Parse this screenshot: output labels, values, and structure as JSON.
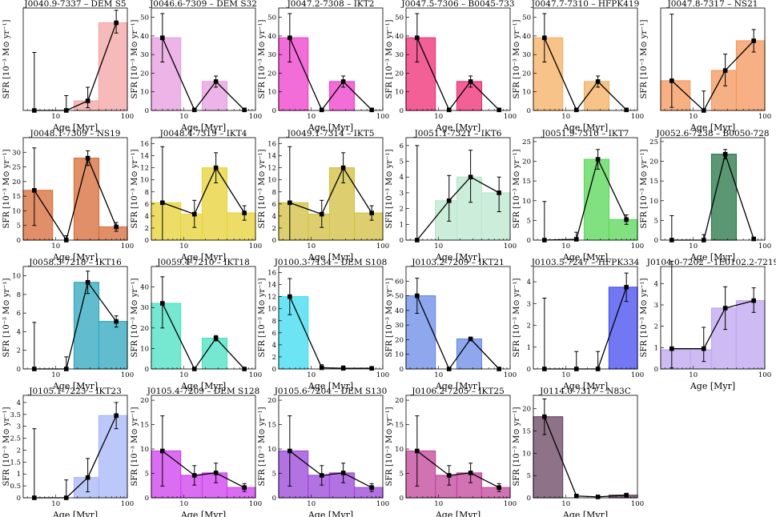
{
  "figure": {
    "xlabel": "Age [Myr]",
    "ylabel": "SFR [10⁻³ M⊙ yr⁻¹]",
    "bin_edges": [
      3.5,
      9,
      18,
      40,
      100
    ],
    "point_ages": [
      5,
      14,
      28,
      70
    ]
  },
  "chart_data": [
    {
      "type": "bar",
      "title": "J0040.9-7337 – DEM S5",
      "color": "#f4a6a6",
      "ylim": [
        0,
        4.5
      ],
      "yticks": [],
      "bars": [
        0,
        0,
        0.42,
        3.85
      ],
      "points": [
        0,
        0,
        0.42,
        3.85
      ],
      "err_lo": [
        0,
        0,
        0.3,
        0.45
      ],
      "err_hi": [
        2.55,
        0.65,
        0.6,
        0.55
      ]
    },
    {
      "type": "bar",
      "title": "J0046.6-7309 – DEM S32",
      "color": "#e8a0e0",
      "ylim": [
        0,
        55
      ],
      "yticks": [
        0,
        10,
        20,
        30,
        40,
        50
      ],
      "bars": [
        39,
        0,
        15.5,
        0
      ],
      "points": [
        39,
        0.3,
        15.5,
        0.3
      ],
      "err_lo": [
        13,
        0,
        3,
        0
      ],
      "err_hi": [
        13,
        0,
        3,
        0
      ]
    },
    {
      "type": "bar",
      "title": "J0047.2-7308 – IKT2",
      "color": "#ee44cc",
      "ylim": [
        0,
        55
      ],
      "yticks": [
        0,
        10,
        20,
        30,
        40,
        50
      ],
      "bars": [
        39,
        0,
        15.5,
        0
      ],
      "points": [
        39,
        0.3,
        15.5,
        0.3
      ],
      "err_lo": [
        13,
        0,
        3,
        0
      ],
      "err_hi": [
        13,
        0,
        3,
        0
      ]
    },
    {
      "type": "bar",
      "title": "J0047.5-7306 – B0045-733",
      "color": "#ee3377",
      "ylim": [
        0,
        55
      ],
      "yticks": [
        0,
        10,
        20,
        30,
        40,
        50
      ],
      "bars": [
        39,
        0,
        15.5,
        0
      ],
      "points": [
        39,
        0.3,
        15.5,
        0.3
      ],
      "err_lo": [
        13,
        0,
        3,
        0
      ],
      "err_hi": [
        13,
        0,
        3,
        0
      ]
    },
    {
      "type": "bar",
      "title": "J0047.7-7310 – HFPK419",
      "color": "#f5b266",
      "ylim": [
        0,
        55
      ],
      "yticks": [
        0,
        10,
        20,
        30,
        40,
        50
      ],
      "bars": [
        39,
        0,
        15.5,
        0
      ],
      "points": [
        39,
        0.3,
        15.5,
        0.3
      ],
      "err_lo": [
        13,
        0,
        3,
        0
      ],
      "err_hi": [
        13,
        0,
        3,
        0
      ]
    },
    {
      "type": "bar",
      "title": "J0047.8-7317 – NS21",
      "color": "#f39a62",
      "ylim": [
        0,
        10
      ],
      "yticks": [],
      "bars": [
        2.9,
        0,
        3.9,
        6.8
      ],
      "points": [
        2.9,
        0,
        3.9,
        6.8
      ],
      "err_lo": [
        2.6,
        0,
        1.5,
        1.1
      ],
      "err_hi": [
        6.5,
        1.9,
        1.6,
        1.1
      ]
    },
    {
      "type": "bar",
      "title": "J0048.1-7309 – NS19",
      "color": "#d9703e",
      "ylim": [
        0,
        35
      ],
      "yticks": [
        0,
        5,
        10,
        15,
        20,
        25,
        30
      ],
      "bars": [
        17,
        0,
        28,
        4.5
      ],
      "points": [
        17,
        0,
        28,
        4.5
      ],
      "err_lo": [
        12,
        0,
        2.5,
        1.5
      ],
      "err_hi": [
        14.5,
        1.5,
        2.5,
        1.5
      ]
    },
    {
      "type": "bar",
      "title": "J0048.4-7319 – IKT4",
      "color": "#e8d43c",
      "ylim": [
        0,
        17
      ],
      "yticks": [
        0,
        2,
        4,
        6,
        8,
        10,
        12,
        14,
        16
      ],
      "bars": [
        6.2,
        4.3,
        12,
        4.5
      ],
      "points": [
        6.2,
        4.3,
        12,
        4.5
      ],
      "err_lo": [
        6.2,
        2.2,
        2.5,
        1.2
      ],
      "err_hi": [
        9.3,
        2.3,
        2.5,
        1.2
      ]
    },
    {
      "type": "bar",
      "title": "J0049.1-7314 – IKT5",
      "color": "#d4c247",
      "ylim": [
        0,
        17
      ],
      "yticks": [
        0,
        2,
        4,
        6,
        8,
        10,
        12,
        14,
        16
      ],
      "bars": [
        6.2,
        4.3,
        12,
        4.5
      ],
      "points": [
        6.2,
        4.3,
        12,
        4.5
      ],
      "err_lo": [
        6.2,
        2.2,
        2.5,
        1.2
      ],
      "err_hi": [
        9.3,
        2.3,
        2.5,
        1.2
      ]
    },
    {
      "type": "bar",
      "title": "J0051.1-7321 – IKT6",
      "color": "#bde8cf",
      "ylim": [
        0,
        6.5
      ],
      "yticks": [
        0,
        1,
        2,
        3,
        4,
        5,
        6
      ],
      "bars": [
        0,
        2.5,
        4,
        3
      ],
      "points": [
        0,
        2.5,
        4,
        3
      ],
      "err_lo": [
        0,
        1.3,
        1.6,
        1.2
      ],
      "err_hi": [
        6,
        1.6,
        1.7,
        1
      ],
      "show_err0": true
    },
    {
      "type": "bar",
      "title": "J0051.9-7310 – IKT7",
      "color": "#5ed95e",
      "ylim": [
        0,
        26
      ],
      "yticks": [
        0,
        5,
        10,
        15,
        20,
        25
      ],
      "bars": [
        0,
        0,
        20.5,
        5.2
      ],
      "points": [
        0,
        0.2,
        20.5,
        5.2
      ],
      "err_lo": [
        0,
        0,
        2.5,
        1.2
      ],
      "err_hi": [
        9.8,
        1.8,
        2.5,
        1.2
      ]
    },
    {
      "type": "bar",
      "title": "J0052.6-7238 – B0050-728",
      "color": "#2e7a4d",
      "ylim": [
        0,
        26
      ],
      "yticks": [
        0,
        5,
        10,
        15,
        20,
        25
      ],
      "bars": [
        0,
        0,
        21.8,
        0
      ],
      "points": [
        0,
        0,
        21.8,
        0.3
      ],
      "err_lo": [
        0,
        0,
        1.2,
        0
      ],
      "err_hi": [
        6.2,
        1.4,
        1.2,
        0
      ]
    },
    {
      "type": "bar",
      "title": "J0058.3-7218 – IKT16",
      "color": "#35a9c0",
      "ylim": [
        0,
        11
      ],
      "yticks": [
        0,
        2,
        4,
        6,
        8,
        10
      ],
      "bars": [
        0,
        0,
        9.3,
        5.1
      ],
      "points": [
        0,
        0,
        9.3,
        5.1
      ],
      "err_lo": [
        0,
        0,
        1.2,
        0.6
      ],
      "err_hi": [
        5,
        1.3,
        1.2,
        0.6
      ]
    },
    {
      "type": "bar",
      "title": "J0059.4-7210 – IKT18",
      "color": "#4fe2c4",
      "ylim": [
        0,
        50
      ],
      "yticks": [
        0,
        10,
        20,
        30,
        40
      ],
      "bars": [
        32,
        0,
        15,
        0
      ],
      "points": [
        32,
        0,
        15,
        0
      ],
      "err_lo": [
        12,
        0,
        1.3,
        0
      ],
      "err_hi": [
        13,
        0,
        1.3,
        0
      ]
    },
    {
      "type": "bar",
      "title": "J0100.3-7134 – DEM S108",
      "color": "#44ddf0",
      "ylim": [
        0,
        17
      ],
      "yticks": [
        0,
        2,
        4,
        6,
        8,
        10,
        12,
        14,
        16
      ],
      "bars": [
        12,
        0,
        0,
        0
      ],
      "points": [
        12,
        0.2,
        0.1,
        0.1
      ],
      "err_lo": [
        3,
        0,
        0,
        0
      ],
      "err_hi": [
        3,
        0.5,
        0.4,
        0.3
      ]
    },
    {
      "type": "bar",
      "title": "J0103.2-7209 – IKT21",
      "color": "#6e8ee8",
      "ylim": [
        0,
        70
      ],
      "yticks": [
        0,
        10,
        20,
        30,
        40,
        50,
        60
      ],
      "bars": [
        50,
        0,
        20.5,
        0
      ],
      "points": [
        50,
        0,
        20.5,
        0
      ],
      "err_lo": [
        12,
        0,
        1.2,
        0
      ],
      "err_hi": [
        12,
        0,
        1.2,
        0
      ]
    },
    {
      "type": "bar",
      "title": "J0103.5-7247 – HFPK334",
      "color": "#4a52f0",
      "ylim": [
        0,
        4.7
      ],
      "yticks": [
        0,
        1,
        2,
        3,
        4
      ],
      "bars": [
        0,
        0,
        0,
        3.75
      ],
      "points": [
        0,
        0,
        0,
        3.75
      ],
      "err_lo": [
        0,
        0,
        0,
        0.65
      ],
      "err_hi": [
        3.25,
        0.8,
        0.8,
        0.65
      ]
    },
    {
      "type": "bar",
      "title": "J0104.0-7202 – 1E0102.2-7219",
      "color": "#c0a8f0",
      "ylim": [
        0,
        4.8
      ],
      "yticks": [
        0,
        1,
        2,
        3,
        4
      ],
      "bars": [
        0.9,
        0.9,
        2.85,
        3.2
      ],
      "points": [
        0.95,
        0.95,
        2.85,
        3.2
      ],
      "err_lo": [
        0.9,
        0.6,
        1,
        0.55
      ],
      "err_hi": [
        4.1,
        1,
        1,
        0.6
      ]
    },
    {
      "type": "bar",
      "title": "J0105.1-7223 – IKT23",
      "color": "#aab8f8",
      "ylim": [
        0,
        4.3
      ],
      "yticks": [
        0,
        0.5,
        1,
        1.5,
        2,
        2.5,
        3,
        3.5,
        4
      ],
      "bars": [
        0,
        0,
        0.85,
        3.45
      ],
      "points": [
        0,
        0,
        0.85,
        3.45
      ],
      "err_lo": [
        0,
        0,
        0.6,
        0.55
      ],
      "err_hi": [
        2.9,
        0.75,
        0.8,
        0.55
      ]
    },
    {
      "type": "bar",
      "title": "J0105.4-7209 – DEM S128",
      "color": "#cf44ee",
      "ylim": [
        0,
        21
      ],
      "yticks": [
        0,
        5,
        10,
        15,
        20
      ],
      "bars": [
        9.6,
        4.6,
        5.1,
        2.1
      ],
      "points": [
        9.6,
        4.6,
        5.1,
        2.1
      ],
      "err_lo": [
        7.2,
        2,
        2,
        0.8
      ],
      "err_hi": [
        7.2,
        2,
        2,
        0.8
      ]
    },
    {
      "type": "bar",
      "title": "J0105.6-7204 – DEM S130",
      "color": "#9e4ad8",
      "ylim": [
        0,
        21
      ],
      "yticks": [
        0,
        5,
        10,
        15,
        20
      ],
      "bars": [
        9.6,
        4.6,
        5.1,
        2.1
      ],
      "points": [
        9.6,
        4.6,
        5.1,
        2.1
      ],
      "err_lo": [
        7.2,
        2,
        2,
        0.8
      ],
      "err_hi": [
        7.2,
        2,
        2,
        0.8
      ]
    },
    {
      "type": "bar",
      "title": "J0106.2-7205 – IKT25",
      "color": "#c44a9e",
      "ylim": [
        0,
        21
      ],
      "yticks": [
        0,
        5,
        10,
        15,
        20
      ],
      "bars": [
        9.6,
        4.6,
        5.1,
        2.1
      ],
      "points": [
        9.6,
        4.6,
        5.1,
        2.1
      ],
      "err_lo": [
        7.2,
        2,
        2,
        0.8
      ],
      "err_hi": [
        7.2,
        2,
        2,
        0.8
      ]
    },
    {
      "type": "bar",
      "title": "J0114.0-7317 – N83C",
      "color": "#6e4a66",
      "ylim": [
        0,
        23
      ],
      "yticks": [
        0,
        5,
        10,
        15,
        20
      ],
      "bars": [
        18.2,
        0,
        0,
        0.6
      ],
      "points": [
        18.2,
        0.4,
        0.2,
        0.6
      ],
      "err_lo": [
        4,
        0,
        0,
        0.2
      ],
      "err_hi": [
        4,
        0.3,
        0.3,
        0.2
      ]
    }
  ]
}
